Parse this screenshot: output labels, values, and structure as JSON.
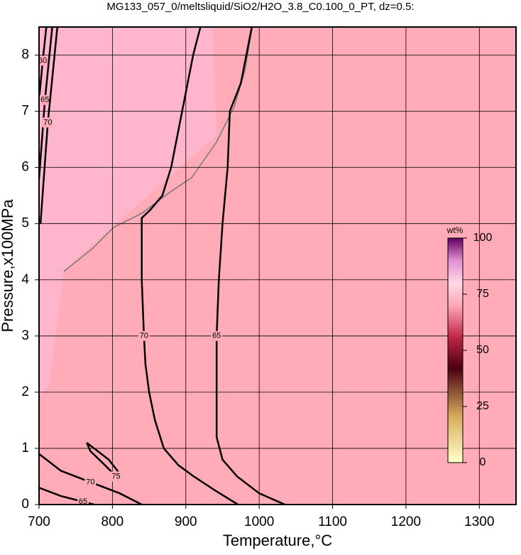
{
  "chart_data": {
    "type": "contour",
    "title": "MG133_057_0/meltsliquid/SiO2/H2O_3.8_C0.100_0_PT, dz=0.5:",
    "x_label": "Temperature,°C",
    "y_label": "Pressure,x100MPa",
    "xlim": [
      700,
      1350
    ],
    "xticks": [
      700,
      800,
      900,
      1000,
      1100,
      1200,
      1300
    ],
    "ylim": [
      0,
      8.5
    ],
    "yticks": [
      0,
      1,
      2,
      3,
      4,
      5,
      6,
      7,
      8
    ],
    "grid": true,
    "background_color": "#ffabb8",
    "contours": [
      {
        "level": 70,
        "x": [
          920,
          910,
          895,
          880,
          868,
          852,
          840,
          840,
          843,
          845,
          850,
          858,
          870,
          890,
          911,
          940,
          971
        ],
        "y": [
          8.5,
          8,
          7,
          6,
          5.5,
          5.25,
          5.1,
          4,
          3,
          2.5,
          2,
          1.5,
          1,
          0.7,
          0.5,
          0.25,
          0
        ]
      },
      {
        "level": 65,
        "x": [
          990,
          975,
          960,
          957,
          950,
          945,
          942,
          942,
          942,
          950,
          970,
          1000,
          1035
        ],
        "y": [
          8.5,
          7.5,
          7,
          6,
          5,
          4,
          3,
          2,
          1.2,
          0.8,
          0.5,
          0.2,
          0
        ]
      },
      {
        "level": 60,
        "x": [
          700,
          705,
          710
        ],
        "y": [
          7.2,
          7.9,
          8.5
        ]
      },
      {
        "level": 65,
        "x": [
          700,
          708,
          718
        ],
        "y": [
          5.8,
          7.2,
          8.5
        ]
      },
      {
        "level": 70,
        "x": [
          702,
          712,
          725
        ],
        "y": [
          5.0,
          6.8,
          8.5
        ]
      },
      {
        "level": 70,
        "x": [
          700,
          730,
          770,
          810,
          840
        ],
        "y": [
          0.9,
          0.6,
          0.4,
          0.2,
          0
        ]
      },
      {
        "level": 65,
        "x": [
          700,
          730,
          760,
          775
        ],
        "y": [
          0.3,
          0.15,
          0.05,
          0
        ]
      },
      {
        "level": 75,
        "x": [
          765,
          780,
          795,
          810,
          805,
          790,
          770,
          765
        ],
        "y": [
          1.1,
          0.95,
          0.8,
          0.55,
          0.5,
          0.7,
          0.95,
          1.1
        ]
      }
    ],
    "colorbar": {
      "label": "wt%",
      "lim": [
        0,
        100
      ],
      "ticks": [
        0,
        25,
        50,
        75,
        100
      ]
    }
  }
}
